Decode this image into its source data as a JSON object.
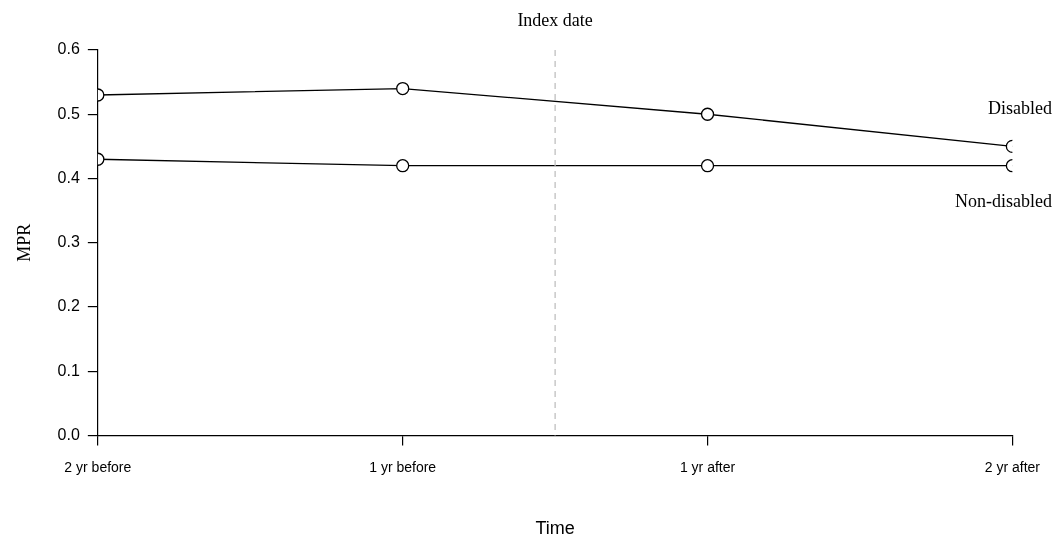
{
  "chart_data": {
    "type": "line",
    "xlabel": "Time",
    "ylabel": "MPR",
    "categories": [
      "2 yr before",
      "1 yr before",
      "1 yr after",
      "2 yr after"
    ],
    "ylim": [
      0,
      0.6
    ],
    "yticks": [
      {
        "value": 0,
        "label": "0.0"
      },
      0.1,
      0.2,
      0.3,
      0.4,
      0.5,
      0.6
    ],
    "series": [
      {
        "name": "Disabled",
        "color": "#000000",
        "values": [
          0.53,
          0.54,
          0.5,
          0.45
        ]
      },
      {
        "name": "Non-disabled",
        "color": "#000000",
        "values": [
          0.43,
          0.42,
          0.42,
          0.42
        ]
      }
    ],
    "annotations": [
      "Index date"
    ],
    "marker": "circle",
    "line_style": "solid",
    "grid": false,
    "legend": false
  }
}
